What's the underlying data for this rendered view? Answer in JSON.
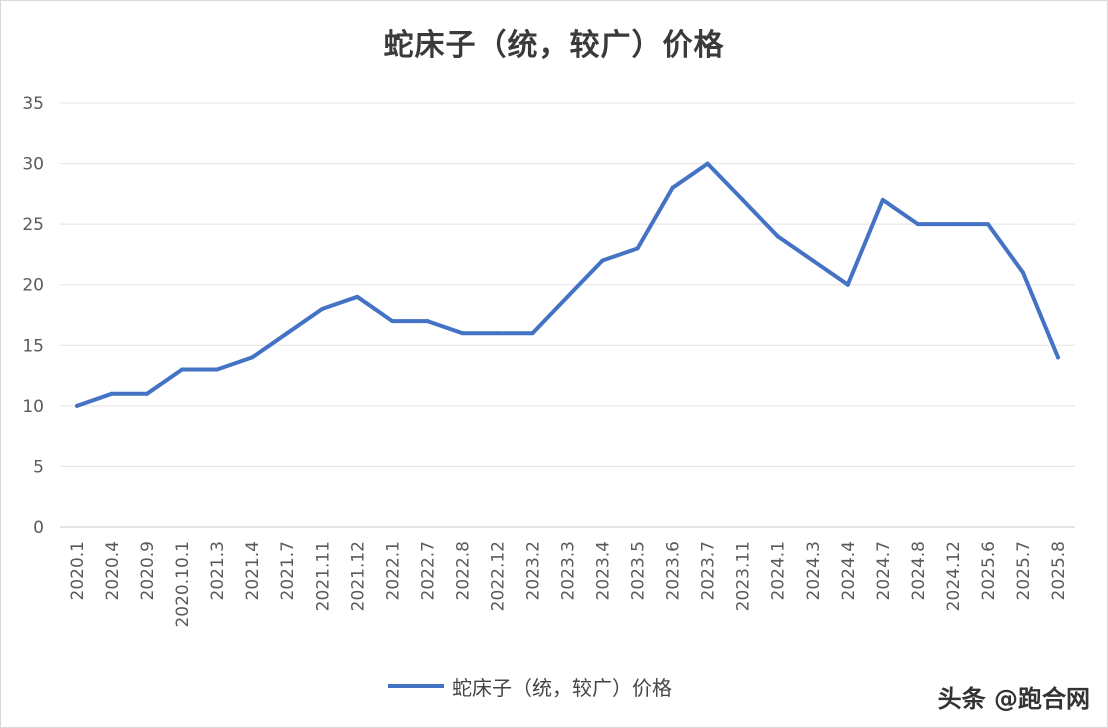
{
  "chart_data": {
    "type": "line",
    "title": "蛇床子（统，较广）价格",
    "xlabel": "",
    "ylabel": "",
    "ylim": [
      0,
      35
    ],
    "yticks": [
      0,
      5,
      10,
      15,
      20,
      25,
      30,
      35
    ],
    "grid": true,
    "legend_position": "bottom",
    "line_color": "#4472c4",
    "categories": [
      "2020.1",
      "2020.4",
      "2020.9",
      "2020.10.1",
      "2021.3",
      "2021.4",
      "2021.7",
      "2021.11",
      "2021.12",
      "2022.1",
      "2022.7",
      "2022.8",
      "2022.12",
      "2023.2",
      "2023.3",
      "2023.4",
      "2023.5",
      "2023.6",
      "2023.7",
      "2023.11",
      "2024.1",
      "2024.3",
      "2024.4",
      "2024.7",
      "2024.8",
      "2024.12",
      "2025.6",
      "2025.7",
      "2025.8"
    ],
    "series": [
      {
        "name": "蛇床子（统，较广）价格",
        "values": [
          10,
          11,
          11,
          13,
          13,
          14,
          16,
          18,
          19,
          17,
          17,
          16,
          16,
          16,
          19,
          22,
          23,
          28,
          30,
          27,
          24,
          22,
          20,
          27,
          25,
          25,
          25,
          21,
          14
        ]
      }
    ]
  },
  "watermark": "头条 @跑合网"
}
